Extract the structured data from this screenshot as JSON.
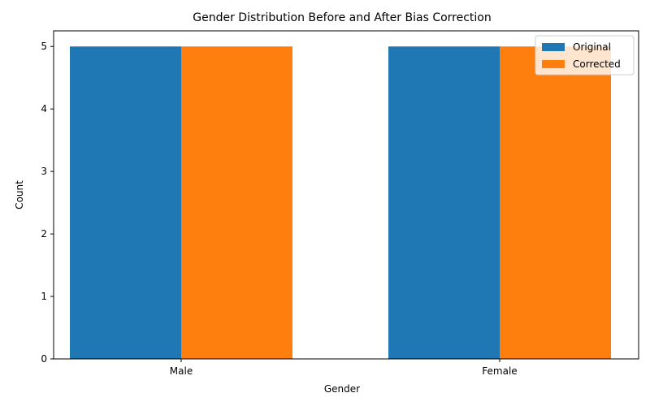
{
  "chart_data": {
    "type": "bar",
    "title": "Gender Distribution Before and After Bias Correction",
    "xlabel": "Gender",
    "ylabel": "Count",
    "categories": [
      "Male",
      "Female"
    ],
    "series": [
      {
        "name": "Original",
        "values": [
          5,
          5
        ],
        "color": "#1f77b4"
      },
      {
        "name": "Corrected",
        "values": [
          5,
          5
        ],
        "color": "#ff7f0e"
      }
    ],
    "ylim": [
      0,
      5.25
    ],
    "yticks": [
      0,
      1,
      2,
      3,
      4,
      5
    ],
    "grid": false,
    "legend_position": "top-right"
  }
}
